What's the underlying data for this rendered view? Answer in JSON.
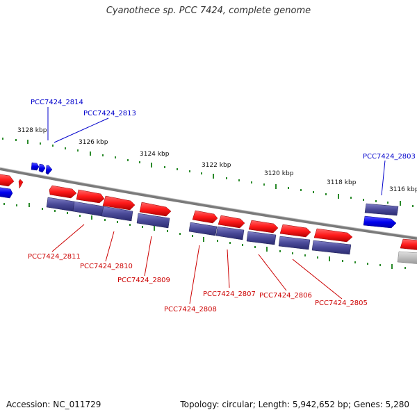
{
  "title": "Cyanothece sp. PCC 7424, complete genome",
  "footer": {
    "accession": "Accession: NC_011729",
    "genome_info": "Topology: circular; Length: 5,942,652 bp; Genes: 5,280"
  },
  "colors": {
    "forward_gene": "#ff2020",
    "reverse_gene": "#4a4aa0",
    "highlight_gene": "#0000ee",
    "label_blue": "#0000cc",
    "label_red": "#cc0000",
    "backbone": "#888888",
    "ticks": "#2a8a2a"
  },
  "kbp_labels": [
    "3128 kbp",
    "3126 kbp",
    "3124 kbp",
    "3122 kbp",
    "3120 kbp",
    "3118 kbp",
    "3116 kbp"
  ],
  "gene_labels": {
    "top": [
      "PCC7424_2814",
      "PCC7424_2813",
      "PCC7424_2803"
    ],
    "bottom": [
      "PCC7424_2811",
      "PCC7424_2810",
      "PCC7424_2809",
      "PCC7424_2808",
      "PCC7424_2807",
      "PCC7424_2806",
      "PCC7424_2805"
    ]
  }
}
